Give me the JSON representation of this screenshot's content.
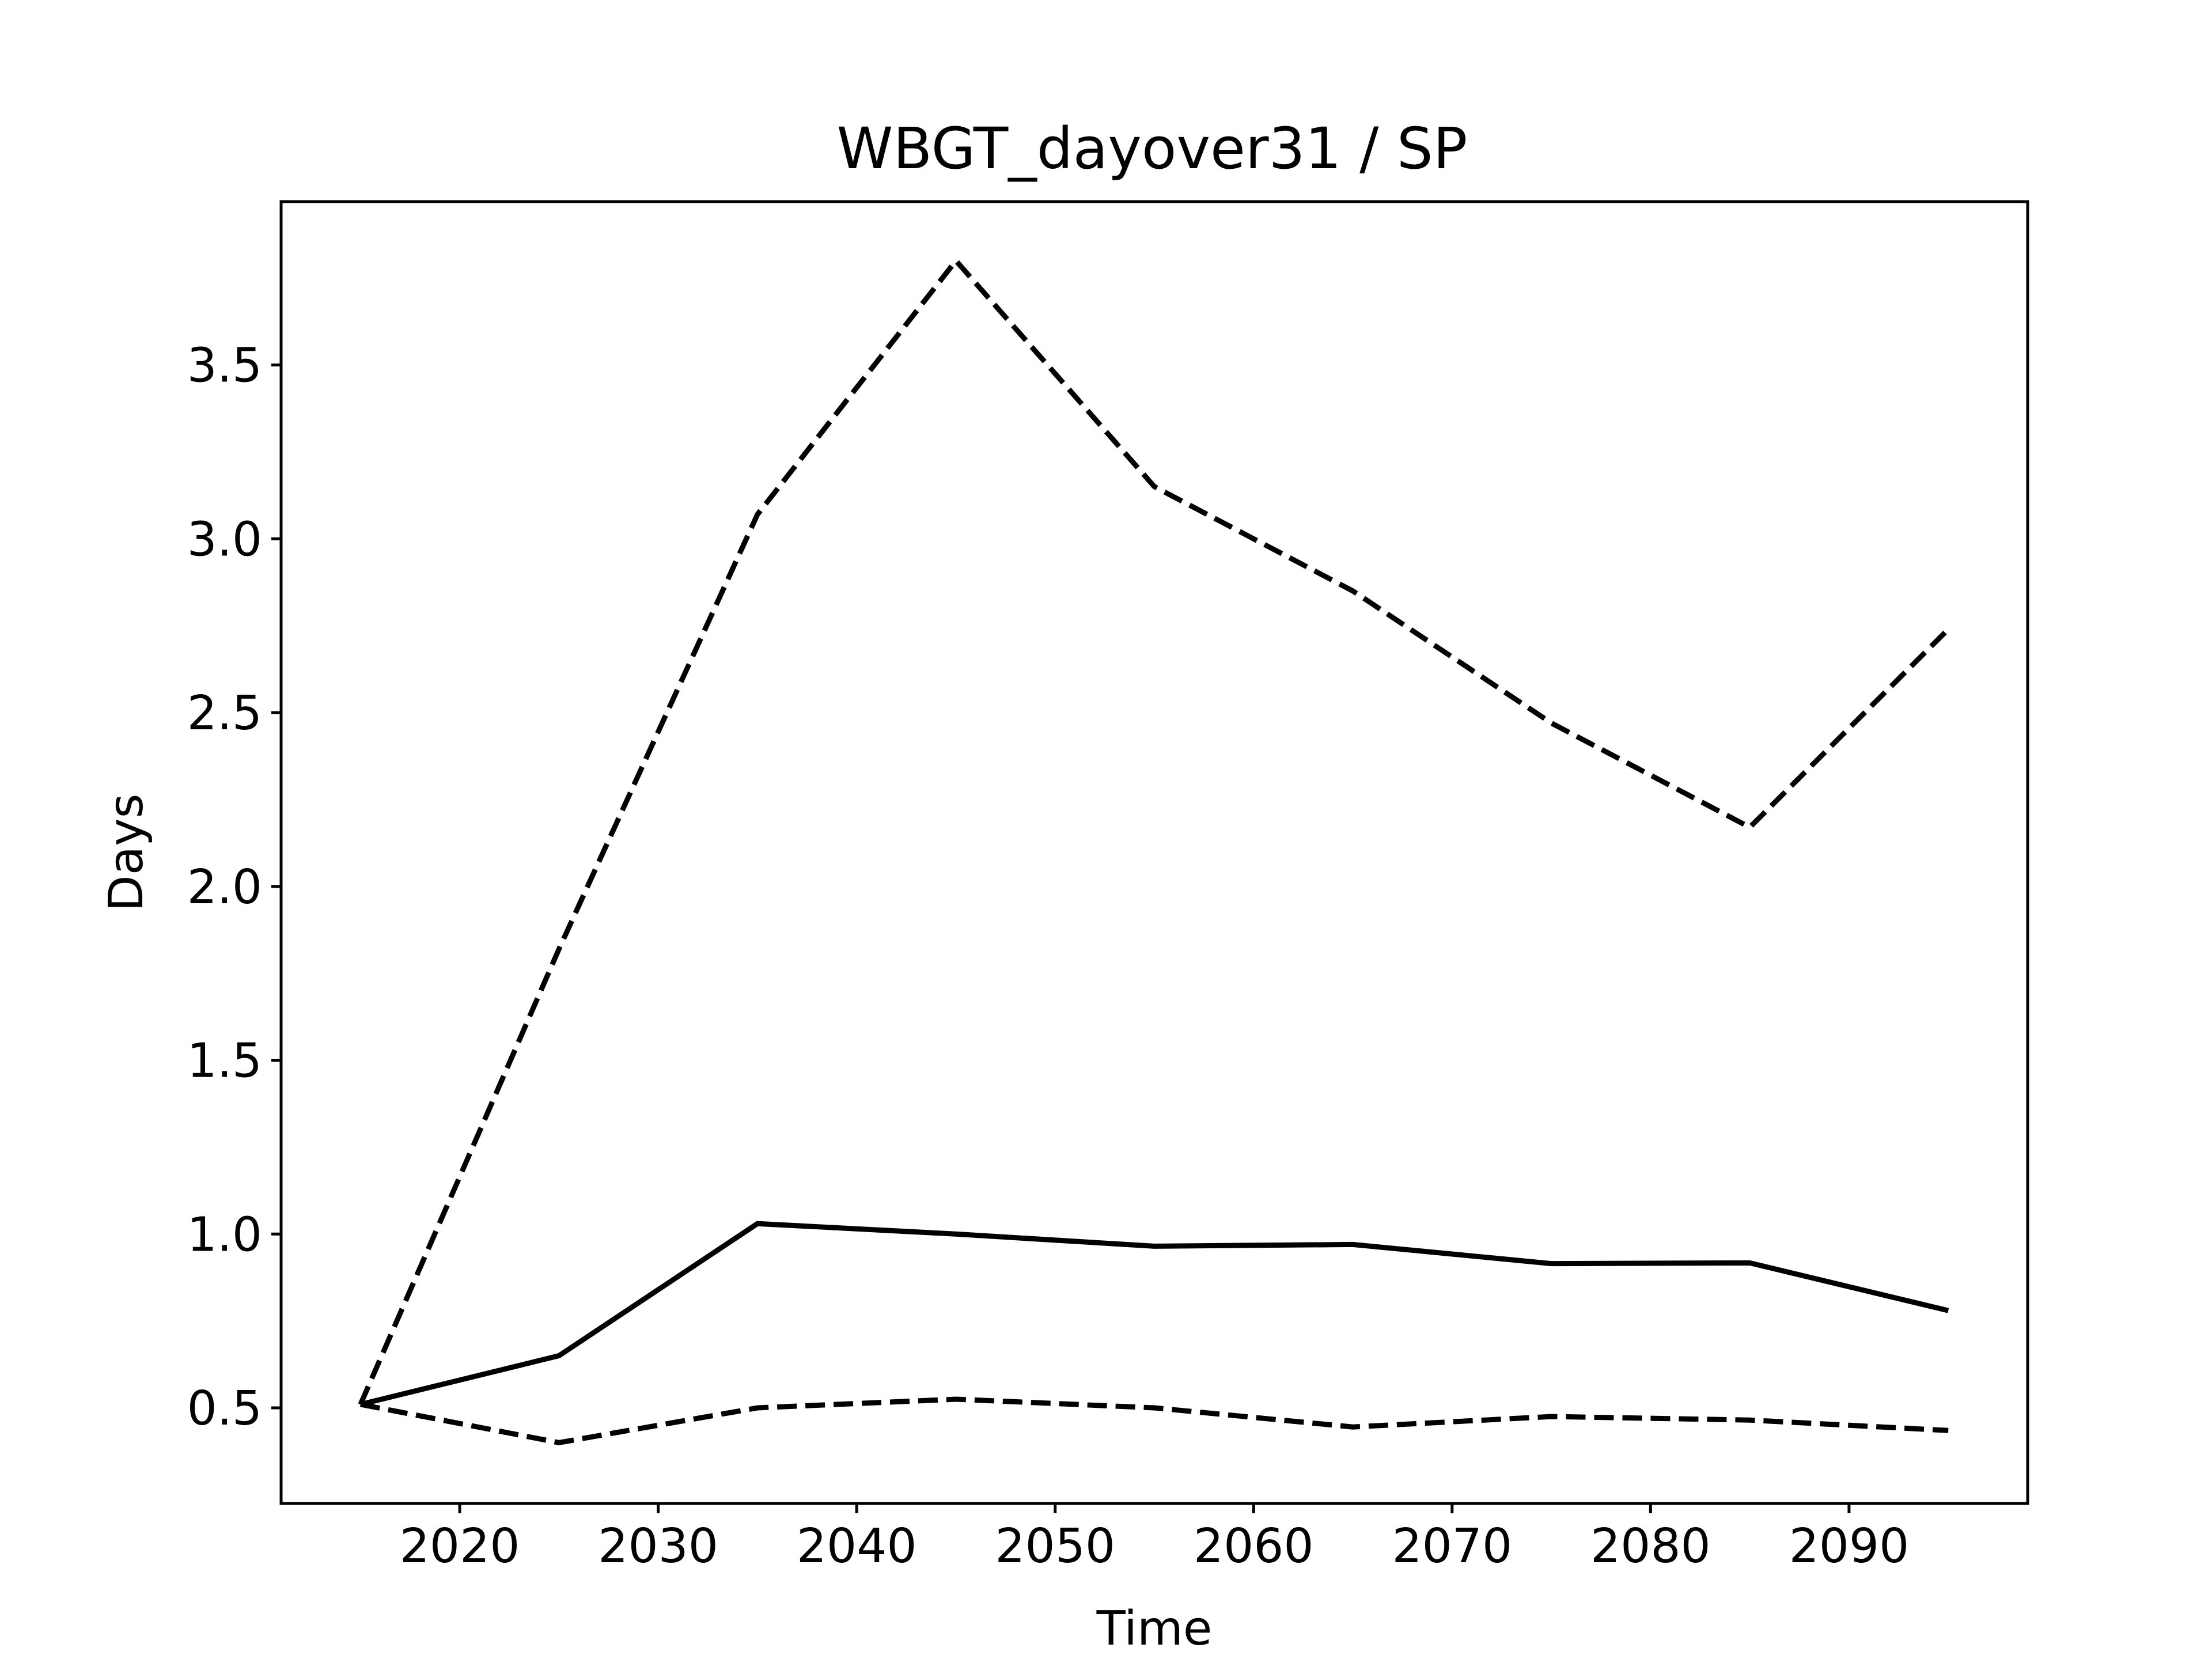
{
  "chart_data": {
    "type": "line",
    "title": "WBGT_dayover31 / SP",
    "xlabel": "Time",
    "ylabel": "Days",
    "xlim": [
      2011,
      2099
    ],
    "ylim": [
      0.225,
      3.97
    ],
    "xticks": [
      2020,
      2030,
      2040,
      2050,
      2060,
      2070,
      2080,
      2090
    ],
    "yticks": [
      0.5,
      1.0,
      1.5,
      2.0,
      2.5,
      3.0,
      3.5
    ],
    "xtick_labels": [
      "2020",
      "2030",
      "2040",
      "2050",
      "2060",
      "2070",
      "2080",
      "2090"
    ],
    "ytick_labels": [
      "0.5",
      "1.0",
      "1.5",
      "2.0",
      "2.5",
      "3.0",
      "3.5"
    ],
    "grid": false,
    "legend": "none",
    "x": [
      2015,
      2025,
      2035,
      2045,
      2055,
      2065,
      2075,
      2085,
      2095
    ],
    "series": [
      {
        "style": "dashed",
        "color": "#000000",
        "values": [
          0.51,
          1.82,
          3.07,
          3.8,
          3.15,
          2.85,
          2.47,
          2.17,
          2.74
        ]
      },
      {
        "style": "solid",
        "color": "#000000",
        "values": [
          0.51,
          0.65,
          1.03,
          1.0,
          0.965,
          0.97,
          0.915,
          0.917,
          0.78
        ]
      },
      {
        "style": "dashed",
        "color": "#000000",
        "values": [
          0.51,
          0.4,
          0.5,
          0.525,
          0.5,
          0.445,
          0.475,
          0.465,
          0.435
        ]
      }
    ]
  }
}
